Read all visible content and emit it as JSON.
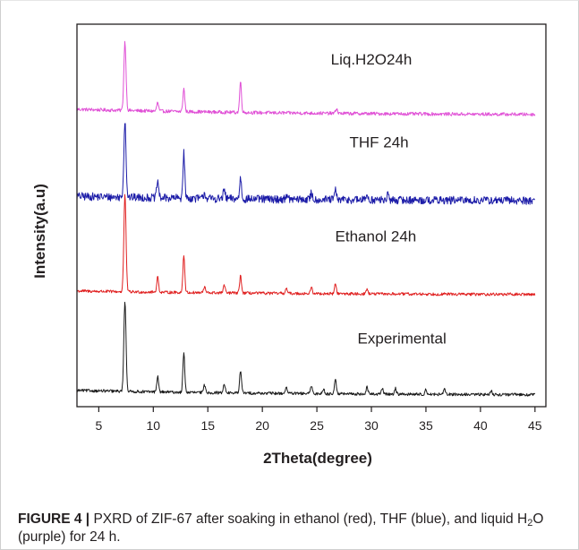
{
  "figure": {
    "caption_label": "FIGURE 4 |",
    "caption_part1": " PXRD of ZIF-67 after soaking in ethanol (red), THF (blue), and liquid H",
    "caption_sub": "2",
    "caption_part2": "O (purple) for 24 h."
  },
  "chart_data": {
    "type": "line",
    "title": "",
    "xlabel": "2Theta(degree)",
    "ylabel": "Intensity(a.u)",
    "xlim": [
      3,
      46
    ],
    "ylim": [
      0,
      4
    ],
    "x_ticks": [
      5,
      10,
      15,
      20,
      25,
      30,
      35,
      40,
      45
    ],
    "y_ticks": [],
    "grid": false,
    "legend": "none",
    "series": [
      {
        "name": "Liq.H2O24h",
        "color": "#e050d6",
        "offset": 3.05,
        "baseline_start": 0.06,
        "baseline_end": 0.0,
        "peaks": [
          {
            "x": 7.4,
            "h": 0.72
          },
          {
            "x": 10.4,
            "h": 0.09
          },
          {
            "x": 12.8,
            "h": 0.24
          },
          {
            "x": 18.0,
            "h": 0.32
          },
          {
            "x": 26.8,
            "h": 0.05
          }
        ]
      },
      {
        "name": "THF 24h",
        "color": "#1c1ca8",
        "offset": 2.15,
        "baseline_start": 0.05,
        "baseline_end": 0.0,
        "peaks": [
          {
            "x": 7.4,
            "h": 0.8
          },
          {
            "x": 10.4,
            "h": 0.18
          },
          {
            "x": 12.8,
            "h": 0.47
          },
          {
            "x": 14.7,
            "h": 0.06
          },
          {
            "x": 16.5,
            "h": 0.09
          },
          {
            "x": 18.0,
            "h": 0.22
          },
          {
            "x": 22.2,
            "h": 0.05
          },
          {
            "x": 24.5,
            "h": 0.07
          },
          {
            "x": 26.7,
            "h": 0.1
          },
          {
            "x": 29.6,
            "h": 0.06
          },
          {
            "x": 31.5,
            "h": 0.05
          }
        ]
      },
      {
        "name": "Ethanol 24h",
        "color": "#e02020",
        "offset": 1.17,
        "baseline_start": 0.04,
        "baseline_end": 0.0,
        "peaks": [
          {
            "x": 7.4,
            "h": 1.02
          },
          {
            "x": 10.4,
            "h": 0.16
          },
          {
            "x": 12.8,
            "h": 0.39
          },
          {
            "x": 14.7,
            "h": 0.06
          },
          {
            "x": 16.5,
            "h": 0.08
          },
          {
            "x": 18.0,
            "h": 0.18
          },
          {
            "x": 22.2,
            "h": 0.05
          },
          {
            "x": 24.5,
            "h": 0.06
          },
          {
            "x": 26.7,
            "h": 0.1
          },
          {
            "x": 29.6,
            "h": 0.05
          }
        ]
      },
      {
        "name": "Experimental",
        "color": "#1a1a1a",
        "offset": 0.12,
        "baseline_start": 0.05,
        "baseline_end": 0.0,
        "peaks": [
          {
            "x": 7.4,
            "h": 0.95
          },
          {
            "x": 10.4,
            "h": 0.16
          },
          {
            "x": 12.8,
            "h": 0.41
          },
          {
            "x": 14.7,
            "h": 0.08
          },
          {
            "x": 16.5,
            "h": 0.1
          },
          {
            "x": 18.0,
            "h": 0.24
          },
          {
            "x": 22.2,
            "h": 0.07
          },
          {
            "x": 24.5,
            "h": 0.08
          },
          {
            "x": 25.6,
            "h": 0.05
          },
          {
            "x": 26.7,
            "h": 0.16
          },
          {
            "x": 29.6,
            "h": 0.07
          },
          {
            "x": 31.0,
            "h": 0.06
          },
          {
            "x": 32.2,
            "h": 0.06
          },
          {
            "x": 35.0,
            "h": 0.05
          },
          {
            "x": 36.7,
            "h": 0.05
          },
          {
            "x": 41.0,
            "h": 0.04
          }
        ]
      }
    ],
    "annotations": [
      "Liq.H2O24h",
      "THF 24h",
      "Ethanol 24h",
      "Experimental"
    ]
  }
}
